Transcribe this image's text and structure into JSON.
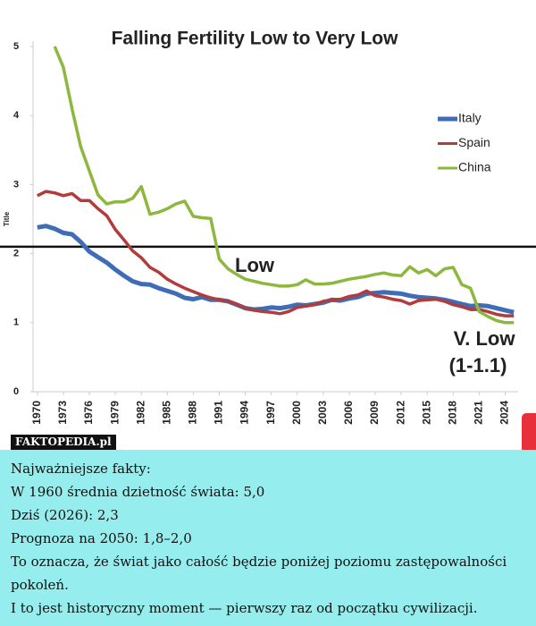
{
  "chart_data": {
    "type": "line",
    "title": "Falling Fertility Low to Very Low",
    "y_label": "Title",
    "x": [
      1970,
      1971,
      1972,
      1973,
      1974,
      1975,
      1976,
      1977,
      1978,
      1979,
      1980,
      1981,
      1982,
      1983,
      1984,
      1985,
      1986,
      1987,
      1988,
      1989,
      1990,
      1991,
      1992,
      1993,
      1994,
      1995,
      1996,
      1997,
      1998,
      1999,
      2000,
      2001,
      2002,
      2003,
      2004,
      2005,
      2006,
      2007,
      2008,
      2009,
      2010,
      2011,
      2012,
      2013,
      2014,
      2015,
      2016,
      2017,
      2018,
      2019,
      2020,
      2021,
      2022,
      2023,
      2024,
      2025
    ],
    "series": [
      {
        "name": "Italy",
        "color": "#3e6db5",
        "values": [
          2.38,
          2.4,
          2.36,
          2.3,
          2.28,
          2.17,
          2.03,
          1.95,
          1.87,
          1.77,
          1.68,
          1.6,
          1.56,
          1.55,
          1.5,
          1.46,
          1.42,
          1.36,
          1.34,
          1.37,
          1.33,
          1.33,
          1.31,
          1.26,
          1.21,
          1.19,
          1.2,
          1.22,
          1.21,
          1.23,
          1.26,
          1.25,
          1.27,
          1.29,
          1.33,
          1.32,
          1.35,
          1.37,
          1.42,
          1.43,
          1.44,
          1.43,
          1.42,
          1.39,
          1.37,
          1.36,
          1.35,
          1.33,
          1.3,
          1.27,
          1.24,
          1.25,
          1.24,
          1.21,
          1.18,
          1.15
        ]
      },
      {
        "name": "Spain",
        "color": "#b23b3b",
        "values": [
          2.84,
          2.9,
          2.88,
          2.84,
          2.87,
          2.77,
          2.77,
          2.65,
          2.55,
          2.35,
          2.2,
          2.04,
          1.94,
          1.8,
          1.73,
          1.63,
          1.56,
          1.5,
          1.45,
          1.4,
          1.36,
          1.33,
          1.31,
          1.27,
          1.21,
          1.18,
          1.16,
          1.15,
          1.13,
          1.16,
          1.22,
          1.24,
          1.26,
          1.31,
          1.33,
          1.34,
          1.38,
          1.4,
          1.46,
          1.39,
          1.37,
          1.34,
          1.32,
          1.27,
          1.32,
          1.33,
          1.34,
          1.31,
          1.26,
          1.23,
          1.19,
          1.19,
          1.16,
          1.12,
          1.1,
          1.1
        ]
      },
      {
        "name": "China",
        "color": "#8db73f",
        "values": [
          null,
          null,
          5.0,
          4.7,
          4.1,
          3.55,
          3.2,
          2.85,
          2.72,
          2.75,
          2.75,
          2.8,
          2.97,
          2.57,
          2.6,
          2.65,
          2.72,
          2.76,
          2.54,
          2.52,
          2.51,
          1.92,
          1.78,
          1.7,
          1.63,
          1.6,
          1.57,
          1.55,
          1.53,
          1.53,
          1.55,
          1.62,
          1.56,
          1.56,
          1.57,
          1.6,
          1.63,
          1.65,
          1.67,
          1.7,
          1.72,
          1.69,
          1.68,
          1.81,
          1.72,
          1.77,
          1.68,
          1.78,
          1.8,
          1.55,
          1.5,
          1.16,
          1.09,
          1.03,
          1.0,
          1.0
        ]
      }
    ],
    "reference_line": 2.1,
    "annotations": [
      "Low",
      "V. Low",
      "(1-1.1)"
    ],
    "xlim": [
      1969.5,
      2025.5
    ],
    "xticks": [
      1970,
      1973,
      1976,
      1979,
      1982,
      1985,
      1988,
      1991,
      1994,
      1997,
      2000,
      2003,
      2006,
      2009,
      2012,
      2015,
      2018,
      2021,
      2024
    ],
    "ylim": [
      0,
      5
    ],
    "yticks": [
      0,
      1,
      2,
      3,
      4,
      5
    ],
    "legend": "right"
  },
  "watermark": "FAKTOPEDIA.pl",
  "caption": [
    "Najważniejsze fakty:",
    "W 1960 średnia dzietność świata: 5,0",
    "Dziś (2026): 2,3",
    "Prognoza na 2050: 1,8–2,0",
    "To oznacza, że świat jako całość będzie poniżej poziomu zastępowalności pokoleń.",
    "I to jest historyczny moment — pierwszy raz od początku cywilizacji."
  ]
}
